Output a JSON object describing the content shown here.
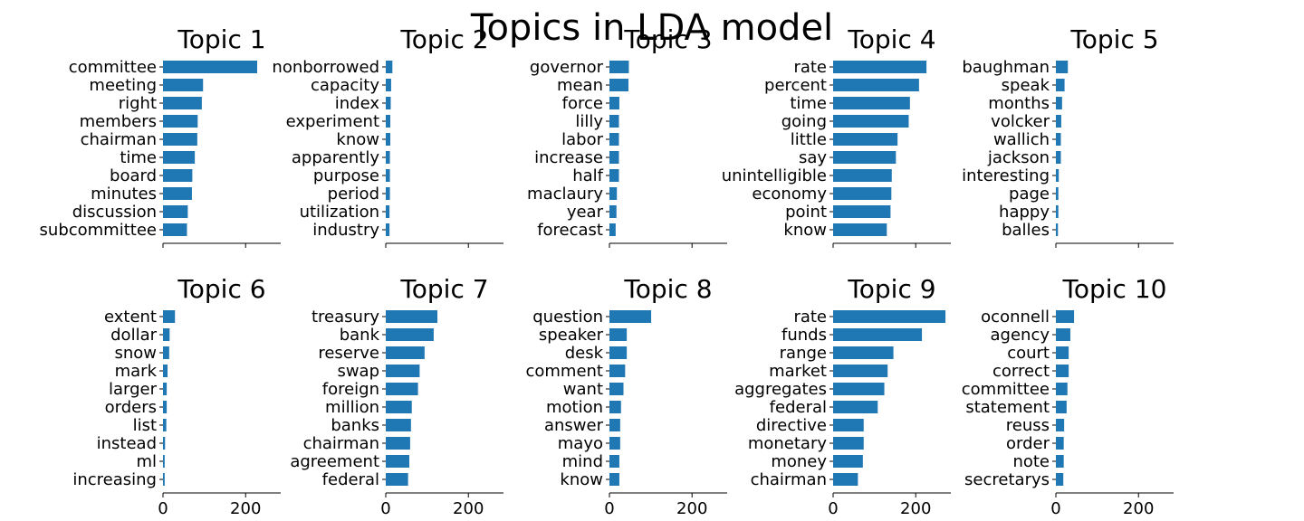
{
  "title": "Topics in LDA model",
  "colors": {
    "bar": "#1f77b4",
    "axis": "#000000",
    "background": "#ffffff"
  },
  "chart_data": {
    "type": "bar",
    "orientation": "horizontal",
    "grid": false,
    "layout": {
      "rows": 2,
      "cols": 5
    },
    "xlim": [
      0,
      285
    ],
    "xticks": [
      0,
      200
    ],
    "x_ticklabels_shown_on_bottom_row_only": true,
    "panels": [
      {
        "title": "Topic 1",
        "categories": [
          "committee",
          "meeting",
          "right",
          "members",
          "chairman",
          "time",
          "board",
          "minutes",
          "discussion",
          "subcommittee"
        ],
        "values": [
          228,
          97,
          94,
          84,
          83,
          77,
          71,
          70,
          60,
          58
        ]
      },
      {
        "title": "Topic 2",
        "categories": [
          "nonborrowed",
          "capacity",
          "index",
          "experiment",
          "know",
          "apparently",
          "purpose",
          "period",
          "utilization",
          "industry"
        ],
        "values": [
          16,
          13,
          12,
          11,
          11,
          10,
          10,
          10,
          9,
          9
        ]
      },
      {
        "title": "Topic 3",
        "categories": [
          "governor",
          "mean",
          "force",
          "lilly",
          "labor",
          "increase",
          "half",
          "maclaury",
          "year",
          "forecast"
        ],
        "values": [
          47,
          46,
          24,
          23,
          23,
          23,
          23,
          18,
          17,
          15
        ]
      },
      {
        "title": "Topic 4",
        "categories": [
          "rate",
          "percent",
          "time",
          "going",
          "little",
          "say",
          "unintelligible",
          "economy",
          "point",
          "know"
        ],
        "values": [
          226,
          208,
          186,
          183,
          156,
          152,
          142,
          141,
          139,
          130
        ]
      },
      {
        "title": "Topic 5",
        "categories": [
          "baughman",
          "speak",
          "months",
          "volcker",
          "wallich",
          "jackson",
          "interesting",
          "page",
          "happy",
          "balles"
        ],
        "values": [
          29,
          21,
          15,
          13,
          12,
          12,
          7,
          6,
          6,
          5
        ]
      },
      {
        "title": "Topic 6",
        "categories": [
          "extent",
          "dollar",
          "snow",
          "mark",
          "larger",
          "orders",
          "list",
          "instead",
          "ml",
          "increasing"
        ],
        "values": [
          29,
          16,
          15,
          11,
          9,
          9,
          8,
          5,
          4,
          4
        ]
      },
      {
        "title": "Topic 7",
        "categories": [
          "treasury",
          "bank",
          "reserve",
          "swap",
          "foreign",
          "million",
          "banks",
          "chairman",
          "agreement",
          "federal"
        ],
        "values": [
          125,
          116,
          94,
          82,
          78,
          63,
          61,
          59,
          57,
          54
        ]
      },
      {
        "title": "Topic 8",
        "categories": [
          "question",
          "speaker",
          "desk",
          "comment",
          "want",
          "motion",
          "answer",
          "mayo",
          "mind",
          "know"
        ],
        "values": [
          101,
          42,
          42,
          38,
          34,
          28,
          26,
          26,
          24,
          24
        ]
      },
      {
        "title": "Topic 9",
        "categories": [
          "rate",
          "funds",
          "range",
          "market",
          "aggregates",
          "federal",
          "directive",
          "monetary",
          "money",
          "chairman"
        ],
        "values": [
          272,
          215,
          146,
          132,
          124,
          108,
          74,
          74,
          72,
          60
        ]
      },
      {
        "title": "Topic 10",
        "categories": [
          "oconnell",
          "agency",
          "court",
          "correct",
          "committee",
          "statement",
          "reuss",
          "order",
          "note",
          "secretarys"
        ],
        "values": [
          44,
          35,
          31,
          31,
          28,
          26,
          20,
          19,
          19,
          18
        ]
      }
    ]
  }
}
